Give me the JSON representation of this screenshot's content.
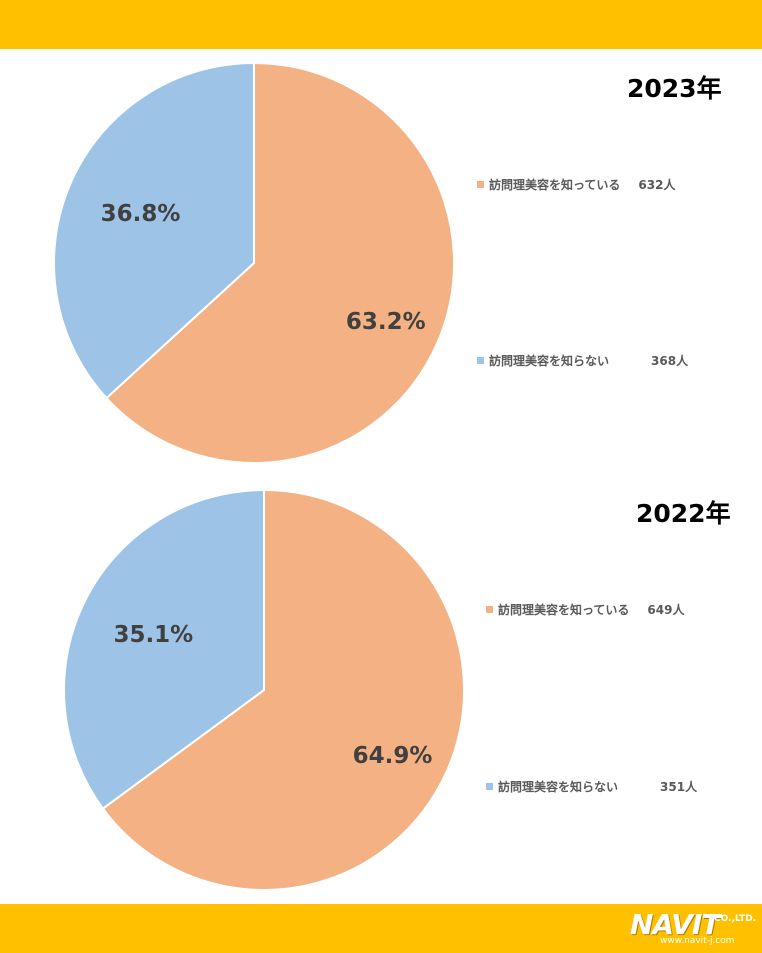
{
  "chart_data": [
    {
      "type": "pie",
      "title": "2023年",
      "categories": [
        "訪問理美容を知っている",
        "訪問理美容を知らない"
      ],
      "values": [
        632,
        368
      ],
      "percent_labels": [
        "63.2%",
        "36.8%"
      ],
      "counts": [
        "632人",
        "368人"
      ],
      "colors": [
        "#f4b183",
        "#9dc3e6"
      ]
    },
    {
      "type": "pie",
      "title": "2022年",
      "categories": [
        "訪問理美容を知っている",
        "訪問理美容を知らない"
      ],
      "values": [
        649,
        351
      ],
      "percent_labels": [
        "64.9%",
        "35.1%"
      ],
      "counts": [
        "649人",
        "351人"
      ],
      "colors": [
        "#f4b183",
        "#9dc3e6"
      ]
    }
  ],
  "logo": {
    "brand": "NAVIT",
    "suffix": "CO.,LTD.",
    "url": "www.navit-j.com"
  },
  "colors": {
    "band": "#ffc000"
  }
}
